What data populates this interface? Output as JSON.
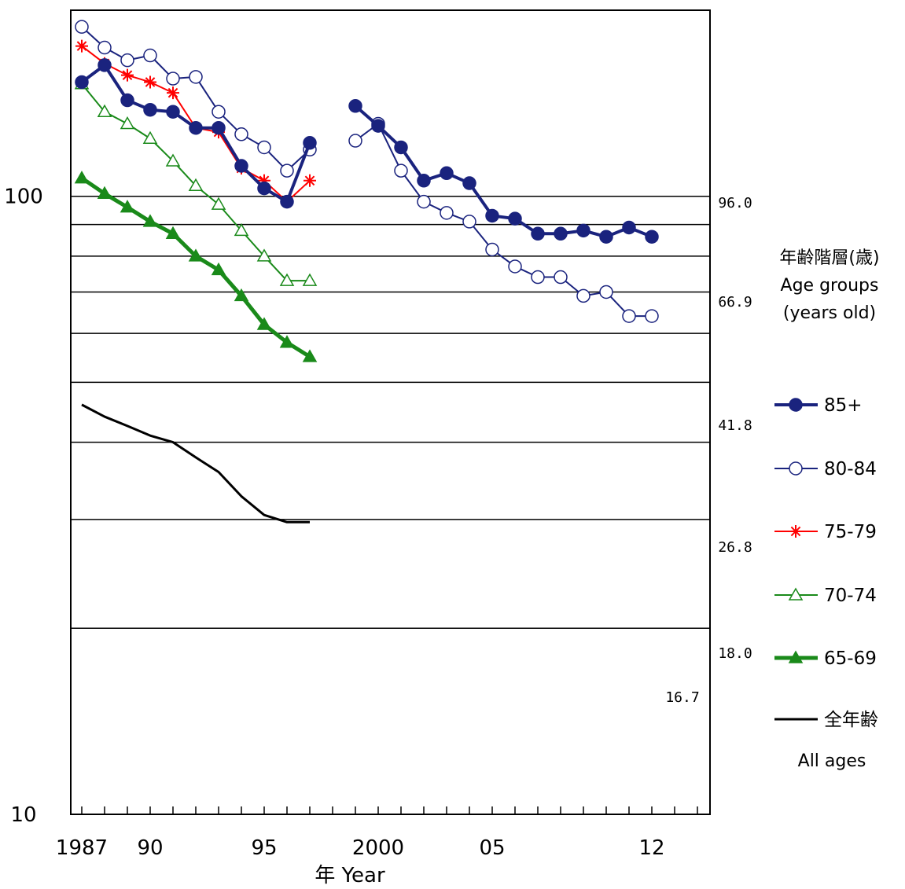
{
  "chart_data": {
    "type": "line",
    "title": "",
    "xlabel": "年 Year",
    "ylabel": "",
    "yscale": "log",
    "ylim": [
      10,
      200
    ],
    "ytick_labels": [
      {
        "value": 100,
        "label": "100"
      },
      {
        "value": 10,
        "label": "10"
      }
    ],
    "gridlines_y": [
      100,
      90,
      80,
      70,
      60,
      50,
      40,
      30,
      20
    ],
    "x": [
      1987,
      1988,
      1989,
      1990,
      1991,
      1992,
      1993,
      1994,
      1995,
      1996,
      1997,
      1998,
      1999,
      2000,
      2001,
      2002,
      2003,
      2004,
      2005,
      2006,
      2007,
      2008,
      2009,
      2010,
      2011,
      2012,
      2013,
      2014
    ],
    "xlim": [
      1986.5,
      2014.5
    ],
    "x_tick_labels": [
      {
        "value": 1987,
        "label": "1987"
      },
      {
        "value": 1990,
        "label": "90"
      },
      {
        "value": 1995,
        "label": "95"
      },
      {
        "value": 2000,
        "label": "2000"
      },
      {
        "value": 2005,
        "label": "05"
      },
      {
        "value": 2012,
        "label": "12"
      }
    ],
    "legend_title_ja": "年齢階層(歳)",
    "legend_title_en": "Age groups",
    "legend_title_en2": "(years old)",
    "legend_position": "right",
    "series": [
      {
        "name": "85+",
        "color": "#1a237e",
        "marker": "filled-circle",
        "width": 4,
        "values": [
          153,
          163,
          143,
          138,
          137,
          129,
          129,
          112,
          103,
          98,
          122,
          null,
          140,
          130,
          120,
          106,
          109,
          105,
          93,
          92,
          87,
          87,
          88,
          86,
          89,
          86,
          null,
          null
        ]
      },
      {
        "name": "80-84",
        "color": "#1a237e",
        "marker": "open-circle",
        "width": 2,
        "values": [
          188,
          174,
          166,
          169,
          155,
          156,
          137,
          126,
          120,
          110,
          119,
          null,
          123,
          131,
          110,
          98,
          94,
          91,
          82,
          77,
          74,
          74,
          69,
          70,
          64,
          64,
          null,
          null
        ]
      },
      {
        "name": "75-79",
        "color": "#ff0000",
        "marker": "asterisk",
        "width": 2,
        "values": [
          175,
          164,
          157,
          153,
          147,
          129,
          127,
          111,
          106,
          98,
          106,
          null,
          null,
          null,
          null,
          null,
          null,
          null,
          null,
          null,
          null,
          null,
          null,
          null,
          null,
          null,
          null,
          null
        ]
      },
      {
        "name": "70-74",
        "color": "#1a8a1a",
        "marker": "open-triangle",
        "width": 2,
        "values": [
          152,
          137,
          131,
          124,
          114,
          104,
          97,
          88,
          80,
          73,
          73,
          null,
          null,
          null,
          null,
          null,
          null,
          null,
          null,
          null,
          null,
          null,
          null,
          null,
          null,
          null,
          null,
          null
        ]
      },
      {
        "name": "65-69",
        "color": "#1a8a1a",
        "marker": "filled-triangle",
        "width": 5,
        "values": [
          107,
          101,
          96,
          91,
          87,
          80,
          76,
          69,
          62,
          58,
          55,
          null,
          null,
          null,
          null,
          null,
          null,
          null,
          null,
          null,
          null,
          null,
          null,
          null,
          null,
          null,
          null,
          null
        ]
      },
      {
        "name": "全年齢",
        "name_en": "All ages",
        "color": "#000000",
        "marker": "none",
        "width": 3,
        "values": [
          46,
          44,
          42.5,
          41,
          40,
          37.8,
          35.8,
          32.7,
          30.5,
          29.7,
          29.7,
          null,
          null,
          null,
          null,
          null,
          null,
          null,
          null,
          null,
          null,
          null,
          null,
          null,
          null,
          null,
          null,
          null
        ]
      }
    ],
    "end_labels": [
      {
        "series": "85+",
        "text": "96.0"
      },
      {
        "series": "80-84",
        "text": "66.9"
      },
      {
        "series": "75-79",
        "text": "41.8"
      },
      {
        "series": "70-74",
        "text": "26.8"
      },
      {
        "series": "65-69",
        "text": "18.0"
      },
      {
        "series": "全年齢",
        "text": "16.7"
      }
    ]
  }
}
